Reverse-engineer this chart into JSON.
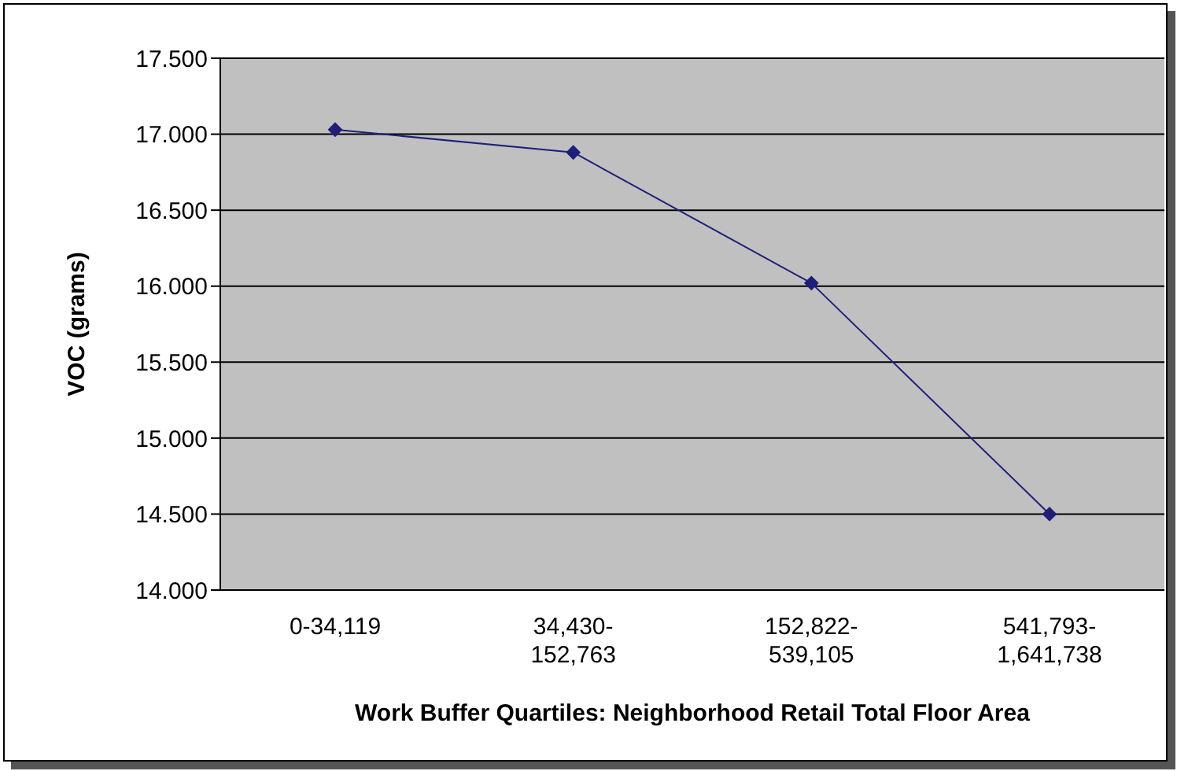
{
  "chart_data": {
    "type": "line",
    "xlabel": "Work Buffer Quartiles: Neighborhood Retail Total Floor Area",
    "ylabel": "VOC (grams)",
    "categories": [
      "0-34,119",
      "34,430-152,763",
      "152,822-539,105",
      "541,793-1,641,738"
    ],
    "series": [
      {
        "color": "#1f1f7a",
        "values": [
          17.03,
          16.88,
          16.02,
          14.5
        ]
      }
    ],
    "ylim": [
      14,
      17.5
    ],
    "yticks": [
      {
        "value": 14,
        "label": "14.000"
      },
      {
        "value": 14.5,
        "label": "14.500"
      },
      {
        "value": 15,
        "label": "15.000"
      },
      {
        "value": 15.5,
        "label": "15.500"
      },
      {
        "value": 16,
        "label": "16.000"
      },
      {
        "value": 16.5,
        "label": "16.500"
      },
      {
        "value": 17,
        "label": "17.000"
      },
      {
        "value": 17.5,
        "label": "17.500"
      }
    ],
    "grid": "y",
    "marker": "diamond",
    "line_style": "solid"
  }
}
